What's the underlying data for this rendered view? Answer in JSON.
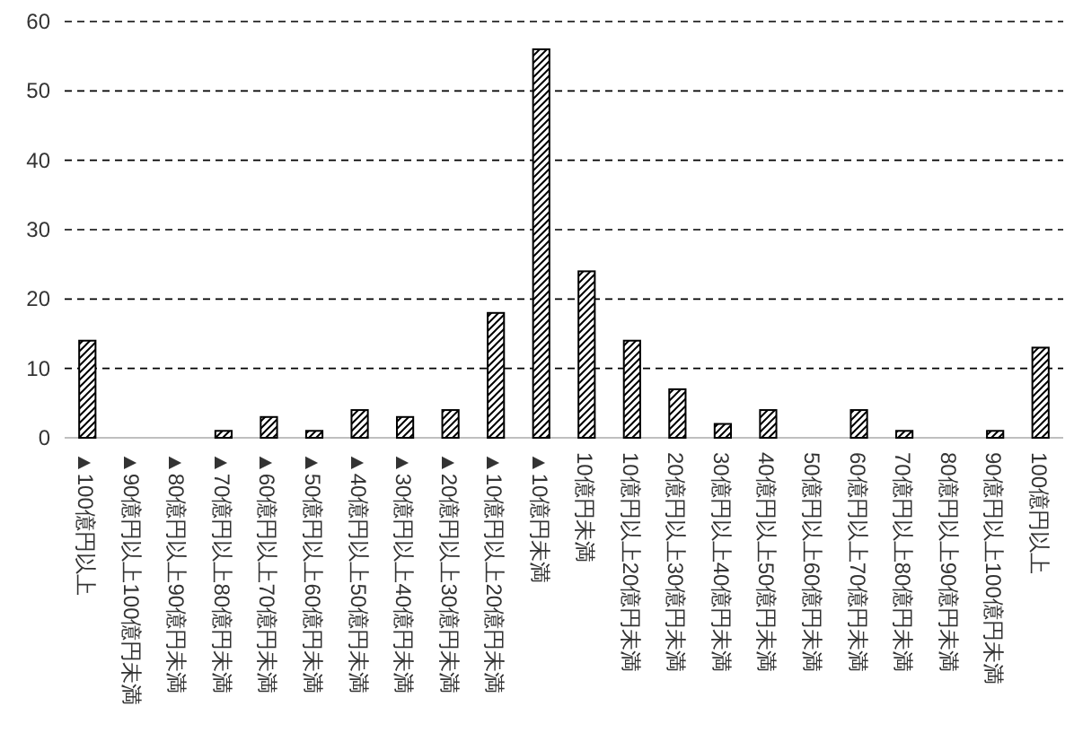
{
  "chart_data": {
    "type": "bar",
    "categories": [
      "▲100億円以上",
      "▲90億円以上100億円未満",
      "▲80億円以上90億円未満",
      "▲70億円以上80億円未満",
      "▲60億円以上70億円未満",
      "▲50億円以上60億円未満",
      "▲40億円以上50億円未満",
      "▲30億円以上40億円未満",
      "▲20億円以上30億円未満",
      "▲10億円以上20億円未満",
      "▲10億円未満",
      "10億円未満",
      "10億円以上20億円未満",
      "20億円以上30億円未満",
      "30億円以上40億円未満",
      "40億円以上50億円未満",
      "50億円以上60億円未満",
      "60億円以上70億円未満",
      "70億円以上80億円未満",
      "80億円以上90億円未満",
      "90億円以上100億円未満",
      "100億円以上"
    ],
    "values": [
      14,
      0,
      0,
      1,
      3,
      1,
      4,
      3,
      4,
      18,
      56,
      24,
      14,
      7,
      2,
      4,
      0,
      4,
      1,
      0,
      1,
      13
    ],
    "color": "#000000",
    "ylim": [
      0,
      60
    ],
    "yticks": [
      0,
      10,
      20,
      30,
      40,
      50,
      60
    ],
    "grid": "y"
  }
}
